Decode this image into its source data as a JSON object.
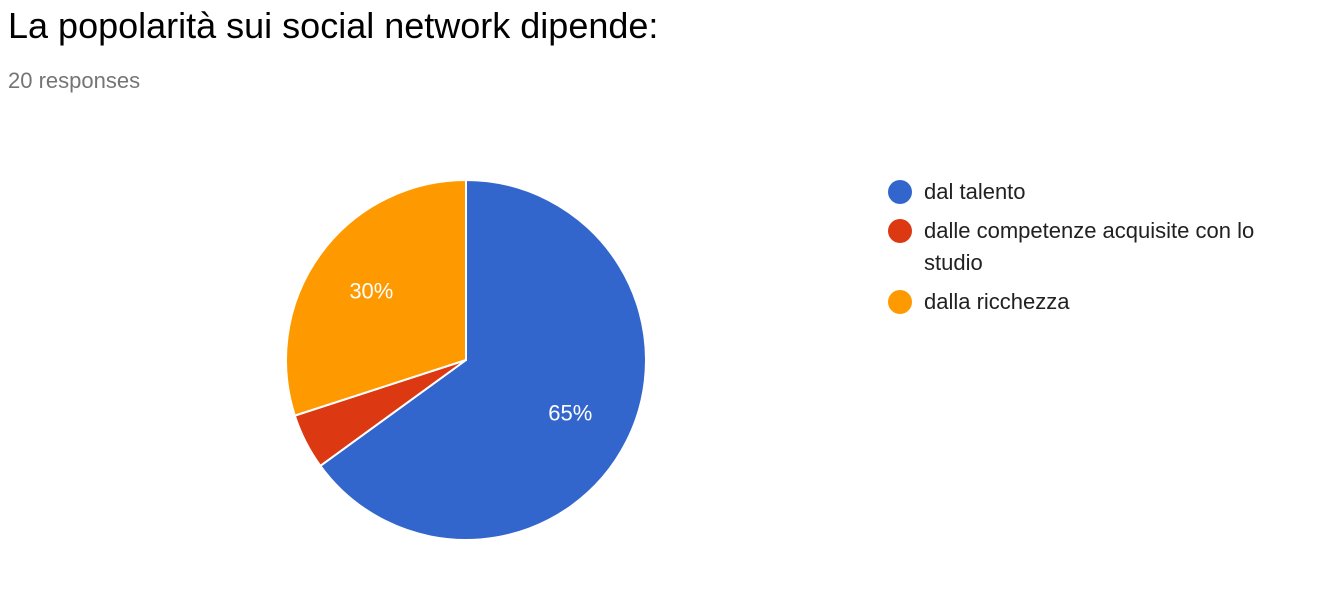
{
  "header": {
    "title": "La popolarità sui social network dipende:",
    "responses": "20 responses"
  },
  "chart_data": {
    "type": "pie",
    "title": "La popolarità sui social network dipende:",
    "categories": [
      "dal talento",
      "dalle competenze acquisite con lo studio",
      "dalla ricchezza"
    ],
    "values": [
      65,
      5,
      30
    ],
    "slice_labels": [
      "65%",
      "",
      "30%"
    ],
    "colors": [
      "#3366cc",
      "#dc3912",
      "#ff9900"
    ],
    "legend_position": "right",
    "start_angle_deg": 90,
    "direction": "clockwise"
  }
}
